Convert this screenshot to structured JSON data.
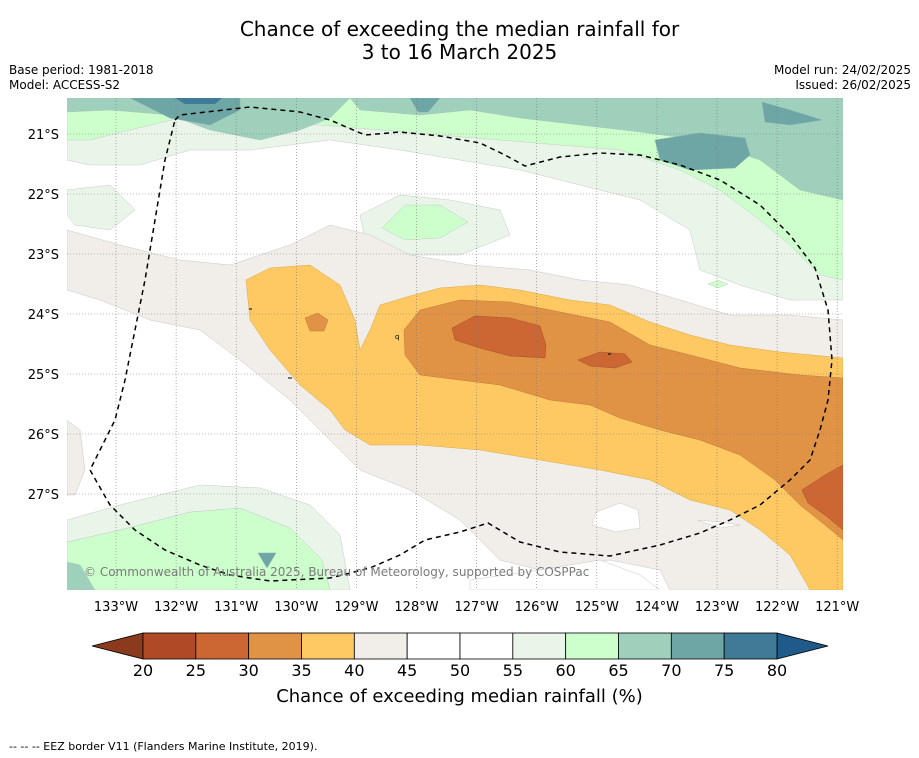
{
  "title": {
    "line1": "Chance of exceeding the median rainfall for",
    "line2": "3 to 16 March 2025"
  },
  "meta": {
    "base_period": "Base period: 1981-2018",
    "model": "Model: ACCESS-S2",
    "model_run": "Model run: 24/02/2025",
    "issued": "Issued: 26/02/2025"
  },
  "map": {
    "lat_labels": [
      "21°S",
      "22°S",
      "23°S",
      "24°S",
      "25°S",
      "26°S",
      "27°S"
    ],
    "lon_labels": [
      "133°W",
      "132°W",
      "131°W",
      "130°W",
      "129°W",
      "128°W",
      "127°W",
      "126°W",
      "125°W",
      "124°W",
      "123°W",
      "122°W",
      "121°W"
    ],
    "copyright": "© Commonwealth of Australia 2025, Bureau of Meteorology, supported by COSPPac",
    "gridlines": true,
    "eez_border_style": "dashed"
  },
  "colorbar": {
    "ticks": [
      "20",
      "25",
      "30",
      "35",
      "40",
      "45",
      "50",
      "55",
      "60",
      "65",
      "70",
      "75",
      "80"
    ],
    "colors": [
      "#b04a26",
      "#cc6633",
      "#e09245",
      "#fec962",
      "#f1ede8",
      "#ffffff",
      "#ffffff",
      "#eaf5ea",
      "#ccffcc",
      "#9ed0bb",
      "#6ea6a6",
      "#3f7a96"
    ],
    "under_color": "#8b3a1e",
    "over_color": "#1f5a8a",
    "label": "Chance of exceeding median rainfall (%)"
  },
  "footnote": "--  --  -- EEZ border V11 (Flanders Marine Institute, 2019)."
}
